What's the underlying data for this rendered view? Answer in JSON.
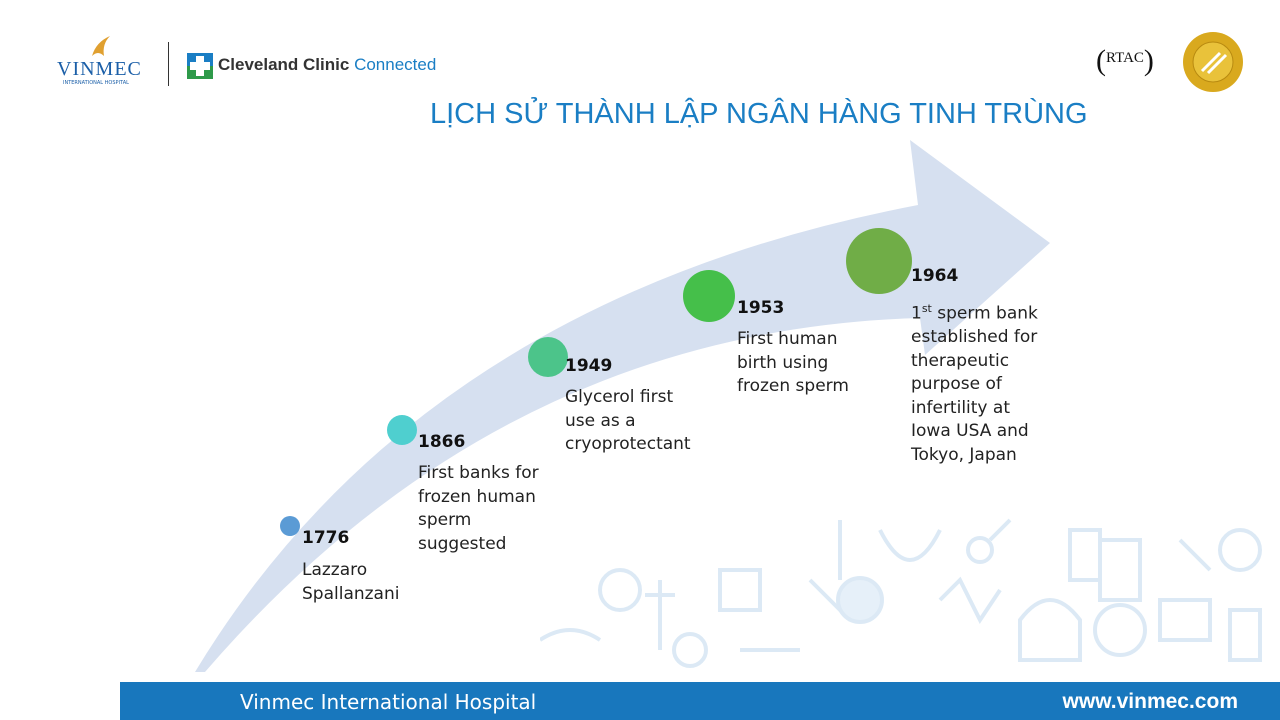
{
  "header": {
    "vinmec_logo": "VINMEC",
    "vinmec_sub": "INTERNATIONAL HOSPITAL",
    "cleveland_bold": "Cleveland Clinic",
    "cleveland_light": "Connected",
    "rtac_logo": "RTAC",
    "jci_logo": "Joint Commission International"
  },
  "title": "LỊCH SỬ THÀNH LẬP NGÂN HÀNG TINH TRÙNG",
  "timeline": [
    {
      "year": "1776",
      "desc": "Lazzaro Spallanzani",
      "color": "#5b9bd5"
    },
    {
      "year": "1866",
      "desc": "First banks for frozen human sperm suggested",
      "color": "#4fcfcf"
    },
    {
      "year": "1949",
      "desc": "Glycerol first use as a cryoprotectant",
      "color": "#4cc48a"
    },
    {
      "year": "1953",
      "desc": "First human birth using frozen sperm",
      "color": "#45bf4a"
    },
    {
      "year": "1964",
      "desc_pre": "1",
      "desc_sup": "st",
      "desc": " sperm bank established for therapeutic purpose of infertility at Iowa USA and Tokyo, Japan",
      "color": "#70ad47"
    }
  ],
  "footer": {
    "left": "Vinmec International Hospital",
    "right": "www.vinmec.com",
    "color": "#1877bd"
  }
}
